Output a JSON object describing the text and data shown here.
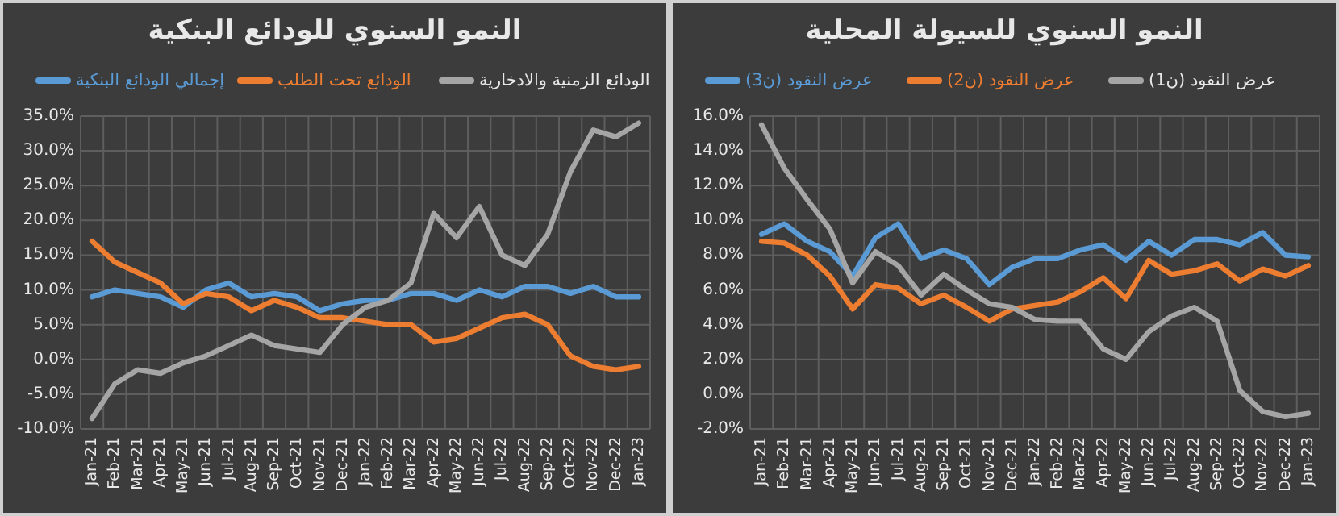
{
  "chart_data": [
    {
      "type": "line",
      "title": "النمو السنوي للودائع البنكية",
      "categories": [
        "Jan-21",
        "Feb-21",
        "Mar-21",
        "Apr-21",
        "May-21",
        "Jun-21",
        "Jul-21",
        "Aug-21",
        "Sep-21",
        "Oct-21",
        "Nov-21",
        "Dec-21",
        "Jan-22",
        "Feb-22",
        "Mar-22",
        "Apr-22",
        "May-22",
        "Jun-22",
        "Jul-22",
        "Aug-22",
        "Sep-22",
        "Oct-22",
        "Nov-22",
        "Dec-22",
        "Jan-23"
      ],
      "series": [
        {
          "name": "إجمالي الودائع البنكية",
          "color": "#5b9bd5",
          "values": [
            9,
            10,
            9.5,
            9,
            7.5,
            10,
            11,
            9,
            9.5,
            9,
            7,
            8,
            8.5,
            8.5,
            9.5,
            9.5,
            8.5,
            10,
            9,
            10.5,
            10.5,
            9.5,
            10.5,
            9,
            9
          ]
        },
        {
          "name": "الودائع تحت الطلب",
          "color": "#ed7d31",
          "values": [
            17,
            14,
            12.5,
            11,
            8,
            9.5,
            9,
            7,
            8.5,
            7.5,
            6,
            6,
            5.5,
            5,
            5,
            2.5,
            3,
            4.5,
            6,
            6.5,
            5,
            0.5,
            -1,
            -1.5,
            -1
          ]
        },
        {
          "name": "الودائع الزمنية والادخارية",
          "color": "#a5a5a5",
          "values": [
            -8.5,
            -3.5,
            -1.5,
            -2,
            -0.5,
            0.5,
            2,
            3.5,
            2,
            1.5,
            1,
            5,
            7.5,
            8.5,
            11,
            21,
            17.5,
            22,
            15,
            13.5,
            18,
            27,
            33,
            32,
            34
          ]
        }
      ],
      "ylim": [
        -10,
        35
      ],
      "yticks": [
        {
          "value": -10,
          "label": "-10.0%"
        },
        {
          "value": -5,
          "label": "-5.0%"
        },
        {
          "value": 0,
          "label": "0.0%"
        },
        {
          "value": 5,
          "label": "5.0%"
        },
        {
          "value": 10,
          "label": "10.0%"
        },
        {
          "value": 15,
          "label": "15.0%"
        },
        {
          "value": 20,
          "label": "20.0%"
        },
        {
          "value": 25,
          "label": "25.0%"
        },
        {
          "value": 30,
          "label": "30.0%"
        },
        {
          "value": 35,
          "label": "35.0%"
        }
      ],
      "grid": true,
      "legend": "top",
      "marker": "none",
      "line_style": "solid"
    },
    {
      "type": "line",
      "title": "النمو السنوي للسيولة المحلية",
      "categories": [
        "Jan-21",
        "Feb-21",
        "Mar-21",
        "Apr-21",
        "May-21",
        "Jun-21",
        "Jul-21",
        "Aug-21",
        "Sep-21",
        "Oct-21",
        "Nov-21",
        "Dec-21",
        "Jan-22",
        "Feb-22",
        "Mar-22",
        "Apr-22",
        "May-22",
        "Jun-22",
        "Jul-22",
        "Aug-22",
        "Sep-22",
        "Oct-22",
        "Nov-22",
        "Dec-22",
        "Jan-23"
      ],
      "series": [
        {
          "name": "عرض النقود (ن3)",
          "color": "#5b9bd5",
          "values": [
            9.2,
            9.8,
            8.8,
            8.2,
            6.8,
            9,
            9.8,
            7.8,
            8.3,
            7.8,
            6.3,
            7.3,
            7.8,
            7.8,
            8.3,
            8.6,
            7.7,
            8.8,
            8,
            8.9,
            8.9,
            8.6,
            9.3,
            8,
            7.9
          ]
        },
        {
          "name": "عرض النقود (ن2)",
          "color": "#ed7d31",
          "values": [
            8.8,
            8.7,
            8,
            6.8,
            4.9,
            6.3,
            6.1,
            5.2,
            5.7,
            5,
            4.2,
            4.9,
            5.1,
            5.3,
            5.9,
            6.7,
            5.5,
            7.7,
            6.9,
            7.1,
            7.5,
            6.5,
            7.2,
            6.8,
            7.4
          ]
        },
        {
          "name": "عرض النقود (ن1)",
          "color": "#a5a5a5",
          "values": [
            15.5,
            13,
            11.2,
            9.5,
            6.4,
            8.2,
            7.4,
            5.7,
            6.9,
            6,
            5.2,
            5,
            4.3,
            4.2,
            4.2,
            2.6,
            2,
            3.6,
            4.5,
            5,
            4.2,
            0.2,
            -1,
            -1.3,
            -1.1
          ]
        }
      ],
      "ylim": [
        -2,
        16
      ],
      "yticks": [
        {
          "value": -2,
          "label": "-2.0%"
        },
        {
          "value": 0,
          "label": "0.0%"
        },
        {
          "value": 2,
          "label": "2.0%"
        },
        {
          "value": 4,
          "label": "4.0%"
        },
        {
          "value": 6,
          "label": "6.0%"
        },
        {
          "value": 8,
          "label": "8.0%"
        },
        {
          "value": 10,
          "label": "10.0%"
        },
        {
          "value": 12,
          "label": "12.0%"
        },
        {
          "value": 14,
          "label": "14.0%"
        },
        {
          "value": 16,
          "label": "16.0%"
        }
      ],
      "grid": true,
      "legend": "top",
      "marker": "none",
      "line_style": "solid"
    }
  ]
}
